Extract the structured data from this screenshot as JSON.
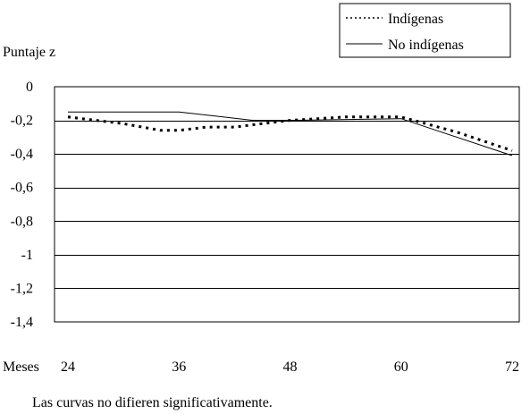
{
  "chart_data": {
    "type": "line",
    "title": "",
    "ylabel": "Puntaje z",
    "xlabel": "Meses",
    "note": "Las curvas no difieren significativamente.",
    "x": [
      24,
      36,
      48,
      60,
      72
    ],
    "x_tick_labels": [
      "24",
      "36",
      "48",
      "60",
      "72"
    ],
    "ylim": [
      -1.4,
      0
    ],
    "y_ticks": [
      0,
      -0.2,
      -0.4,
      -0.6,
      -0.8,
      -1,
      -1.2,
      -1.4
    ],
    "y_tick_labels": [
      "0",
      "-0,2",
      "-0,4",
      "-0,6",
      "-0,8",
      "-1",
      "-1,2",
      "-1,4"
    ],
    "grid": true,
    "legend_position": "top-right",
    "series": [
      {
        "name": "Indígenas",
        "style": "dotted",
        "points": [
          [
            24,
            -0.18
          ],
          [
            30,
            -0.22
          ],
          [
            34,
            -0.26
          ],
          [
            36,
            -0.26
          ],
          [
            39,
            -0.24
          ],
          [
            42,
            -0.24
          ],
          [
            45,
            -0.22
          ],
          [
            48,
            -0.2
          ],
          [
            51,
            -0.19
          ],
          [
            54,
            -0.18
          ],
          [
            60,
            -0.18
          ],
          [
            66,
            -0.27
          ],
          [
            72,
            -0.38
          ]
        ]
      },
      {
        "name": "No indígenas",
        "style": "solid",
        "points": [
          [
            24,
            -0.15
          ],
          [
            36,
            -0.15
          ],
          [
            44,
            -0.2
          ],
          [
            48,
            -0.2
          ],
          [
            60,
            -0.19
          ],
          [
            72,
            -0.41
          ]
        ]
      }
    ]
  }
}
